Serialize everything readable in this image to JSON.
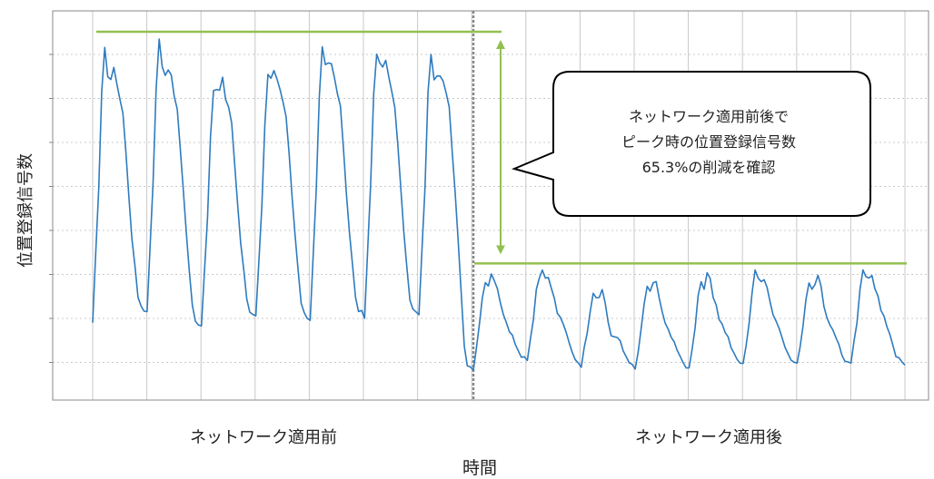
{
  "chart_data": {
    "type": "line",
    "ylabel": "位置登録信号数",
    "xlabel": "時間",
    "periods": [
      "ネットワーク適用前",
      "ネットワーク適用後"
    ],
    "y_axis_tick_labels": false,
    "grid": true,
    "annotation": {
      "lines": [
        "ネットワーク適用前後で",
        "ピーク時の位置登録信号数",
        "65.3%の削減を確認"
      ]
    },
    "ylim": [
      0,
      100
    ],
    "peak_before": 100,
    "peak_after": 34.7,
    "series": [
      {
        "color": "#2e7bbf",
        "before_cycles": [
          {
            "min": 18,
            "peak": 101,
            "plateau": 87
          },
          {
            "min": 21,
            "peak": 101,
            "plateau": 88
          },
          {
            "min": 17,
            "peak": 84,
            "plateau": 84
          },
          {
            "min": 20,
            "peak": 88,
            "plateau": 86
          },
          {
            "min": 19,
            "peak": 97,
            "plateau": 89
          },
          {
            "min": 20,
            "peak": 99,
            "plateau": 89
          },
          {
            "min": 20,
            "peak": 99,
            "plateau": 88
          }
        ],
        "after_cycles": [
          {
            "min": 5,
            "peak": 31,
            "plateau": 30
          },
          {
            "min": 7,
            "peak": 33,
            "plateau": 31
          },
          {
            "min": 6,
            "peak": 25,
            "plateau": 24
          },
          {
            "min": 5,
            "peak": 28,
            "plateau": 27
          },
          {
            "min": 5,
            "peak": 31,
            "plateau": 29
          },
          {
            "min": 6,
            "peak": 32,
            "plateau": 30
          },
          {
            "min": 6,
            "peak": 30,
            "plateau": 29
          },
          {
            "min": 6,
            "peak": 32,
            "plateau": 31
          }
        ]
      }
    ],
    "colors": {
      "series": "#2e7bbf",
      "peak_line": "#92c050",
      "divider": "#888888",
      "grid": "#c8c8c8"
    }
  }
}
